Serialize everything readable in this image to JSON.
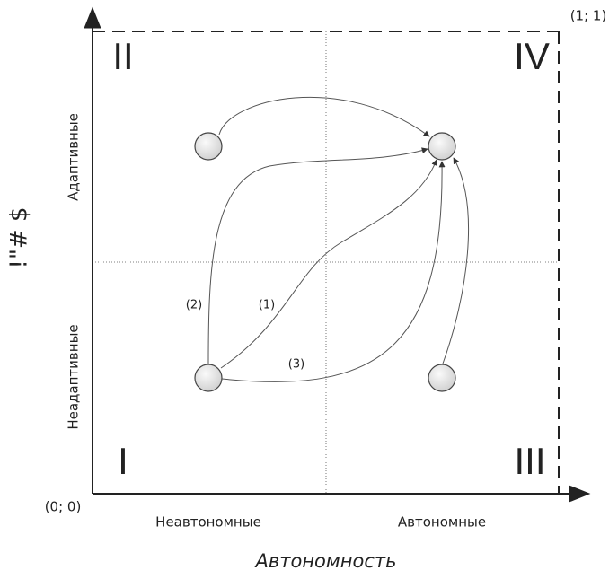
{
  "quadrants": {
    "top_left": "II",
    "top_right": "IV",
    "bottom_left": "I",
    "bottom_right": "III"
  },
  "corners": {
    "top_right": "(1; 1)",
    "origin": "(0; 0)"
  },
  "y_axis": {
    "title": "!\"# $",
    "upper": "Адаптивные",
    "lower": "Неадаптивные"
  },
  "x_axis": {
    "title": "Автономность",
    "left": "Неавтономные",
    "right": "Автономные"
  },
  "paths": [
    "(1)",
    "(2)",
    "(3)"
  ]
}
